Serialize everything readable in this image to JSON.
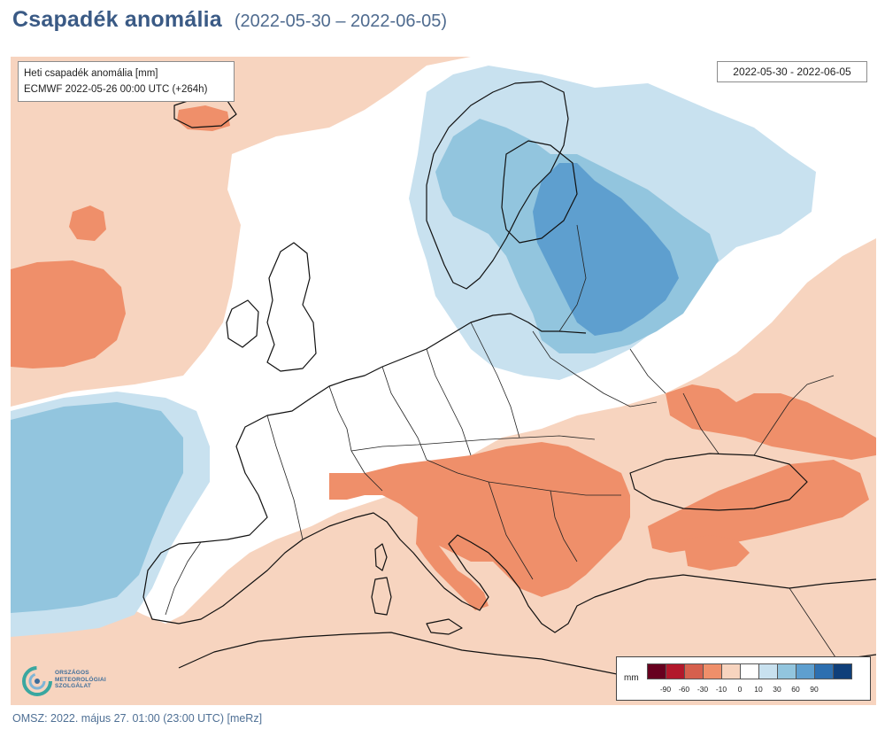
{
  "header": {
    "title": "Csapadék anomália",
    "period": "(2022-05-30 – 2022-06-05)"
  },
  "map": {
    "info_line1": "Heti csapadék anomália [mm]",
    "info_line2": "ECMWF 2022-05-26 00:00 UTC (+264h)",
    "date_range": "2022-05-30 - 2022-06-05",
    "legend": {
      "unit": "mm",
      "colors": [
        "#67001f",
        "#b2182b",
        "#d6604d",
        "#ef8f6a",
        "#f7d4bf",
        "#ffffff",
        "#c8e1ef",
        "#92c5de",
        "#5e9fcf",
        "#2d6fb0",
        "#0f3f7a"
      ],
      "labels": [
        "-90",
        "-60",
        "-30",
        "-10",
        "0",
        "10",
        "30",
        "60",
        "90"
      ]
    },
    "logo": {
      "lines": [
        "ORSZÁGOS",
        "METEOROLÓGIAI",
        "SZOLGÁLAT"
      ]
    }
  },
  "footer": {
    "text": "OMSZ: 2022. május 27. 01:00 (23:00  UTC)  [meRz]"
  }
}
